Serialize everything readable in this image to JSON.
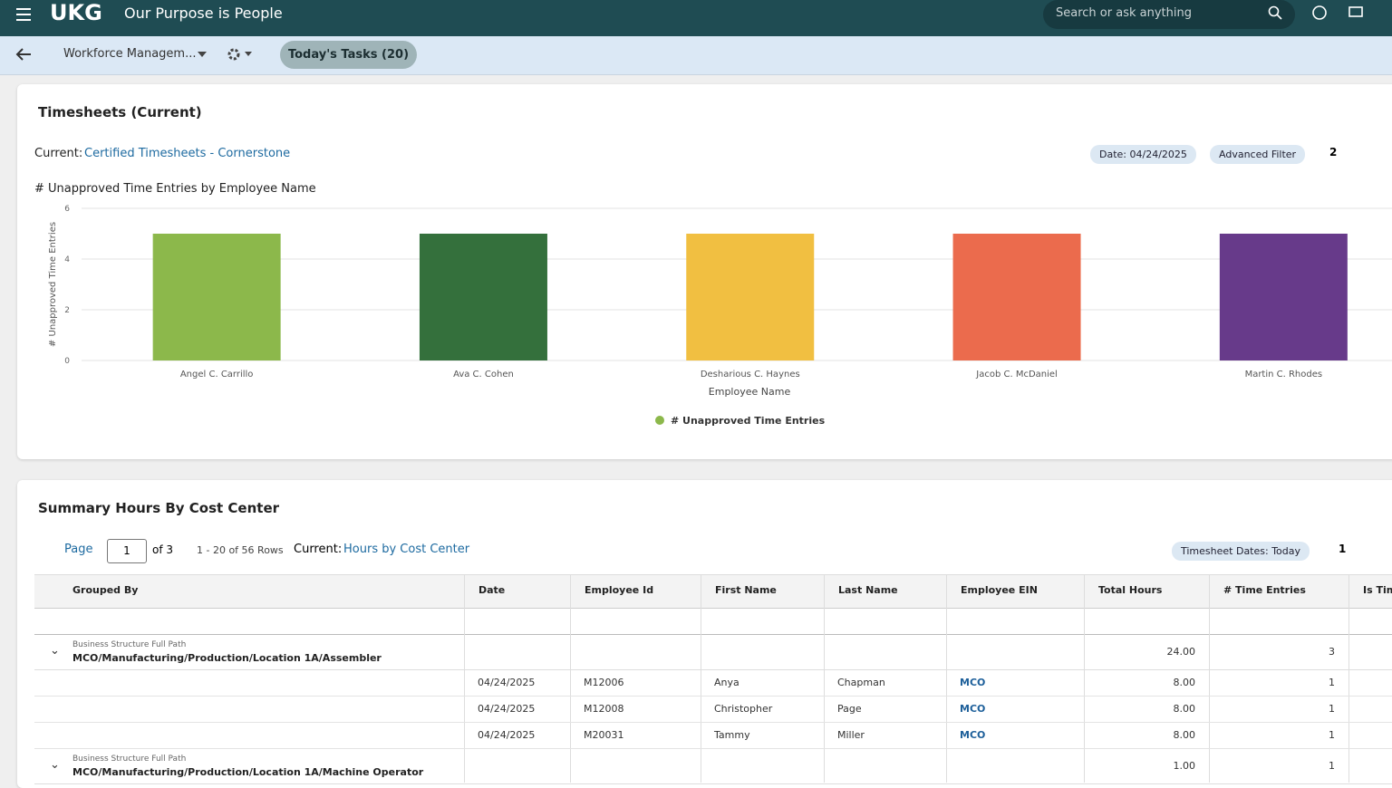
{
  "header": {
    "brand": "UKG",
    "tagline": "Our Purpose is People",
    "search_placeholder": "Search or ask anything"
  },
  "toolbar": {
    "workspace": "Workforce Managem...",
    "tasks": "Today's Tasks (20)"
  },
  "timesheets": {
    "title": "Timesheets (Current)",
    "current_label": "Current:",
    "current_view": "Certified Timesheets - Cornerstone",
    "date_filter": "Date: 04/24/2025",
    "advanced_filter": "Advanced Filter",
    "filter_count": "2",
    "chart_title": "# Unapproved Time Entries by Employee Name"
  },
  "chart_data": {
    "type": "bar",
    "x_label": "Employee Name",
    "y_label": "# Unapproved Time Entries",
    "categories": [
      "Angel C. Carrillo",
      "Ava C. Cohen",
      "Desharious C. Haynes",
      "Jacob C. McDaniel",
      "Martin C. Rhodes"
    ],
    "series": [
      {
        "name": "# Unapproved Time Entries",
        "color": "#8cb84b",
        "values": [
          5,
          5,
          5,
          5,
          5
        ]
      }
    ],
    "colors": [
      "#8cb84b",
      "#34703c",
      "#f1bf41",
      "#eb6b4d",
      "#673a8a"
    ],
    "ylim": [
      0,
      6
    ],
    "yticks": [
      0,
      2,
      4,
      6
    ],
    "grid": true,
    "legend": "bottom"
  },
  "summary": {
    "title": "Summary Hours By Cost Center",
    "page_label": "Page",
    "page": "1",
    "of_pages": "of 3",
    "rows_info": "1 - 20 of 56 Rows",
    "current_label": "Current:",
    "current_view": "Hours by Cost Center",
    "date_filter": "Timesheet Dates: Today",
    "filter_count": "1"
  },
  "table": {
    "columns": [
      "Grouped By",
      "Date",
      "Employee Id",
      "First Name",
      "Last Name",
      "Employee EIN",
      "Total Hours",
      "# Time Entries",
      "Is Tim"
    ],
    "groups": [
      {
        "label": "Business Structure Full Path",
        "path": "MCO/Manufacturing/Production/Location 1A/Assembler",
        "total_hours": "24.00",
        "time_entries": "3",
        "rows": [
          [
            "04/24/2025",
            "M12006",
            "Anya",
            "Chapman",
            "MCO",
            "8.00",
            "1"
          ],
          [
            "04/24/2025",
            "M12008",
            "Christopher",
            "Page",
            "MCO",
            "8.00",
            "1"
          ],
          [
            "04/24/2025",
            "M20031",
            "Tammy",
            "Miller",
            "MCO",
            "8.00",
            "1"
          ]
        ]
      },
      {
        "label": "Business Structure Full Path",
        "path": "MCO/Manufacturing/Production/Location 1A/Machine Operator",
        "total_hours": "1.00",
        "time_entries": "1",
        "rows": []
      }
    ]
  }
}
